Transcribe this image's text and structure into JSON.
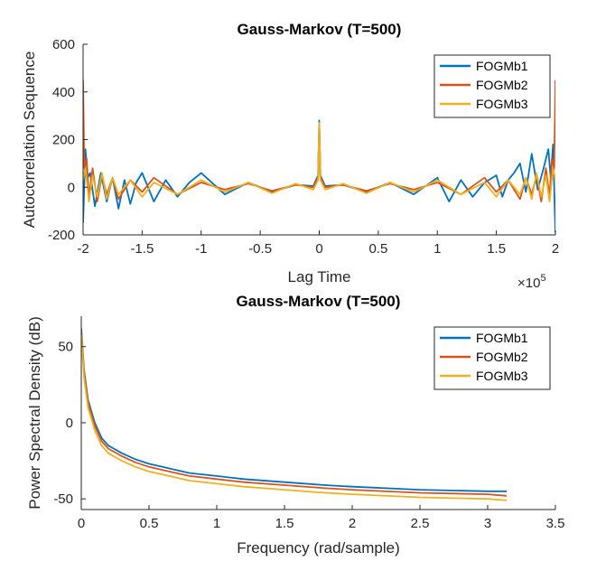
{
  "chart_data": [
    {
      "type": "line",
      "title": "Gauss-Markov (T=500)",
      "xlabel": "Lag Time",
      "ylabel": "Autocorrelation Sequence",
      "x_exponent_base": "×10",
      "x_exponent_power": "5",
      "xlim": [
        -200000,
        200000
      ],
      "ylim": [
        -200,
        600
      ],
      "xticks": [
        -200000,
        -150000,
        -100000,
        -50000,
        0,
        50000,
        100000,
        150000,
        200000
      ],
      "xtick_labels": [
        "-2",
        "-1.5",
        "-1",
        "-0.5",
        "0",
        "0.5",
        "1",
        "1.5",
        "2"
      ],
      "yticks": [
        -200,
        0,
        200,
        400,
        600
      ],
      "ytick_labels": [
        "-200",
        "0",
        "200",
        "400",
        "600"
      ],
      "legend_position": "top-right",
      "grid": false,
      "series": [
        {
          "name": "FOGMb1",
          "color": "#0072BD",
          "x": [
            -200000,
            -198000,
            -196000,
            -194000,
            -190000,
            -185000,
            -180000,
            -175000,
            -170000,
            -165000,
            -160000,
            -155000,
            -150000,
            -140000,
            -130000,
            -120000,
            -110000,
            -100000,
            -80000,
            -60000,
            -40000,
            -20000,
            -5000,
            -1000,
            0,
            1000,
            5000,
            20000,
            40000,
            60000,
            80000,
            100000,
            110000,
            120000,
            130000,
            140000,
            150000,
            155000,
            160000,
            165000,
            170000,
            175000,
            180000,
            185000,
            190000,
            194000,
            196000,
            198000,
            200000
          ],
          "values": [
            -150,
            160,
            40,
            60,
            -80,
            60,
            -60,
            40,
            -90,
            30,
            -70,
            20,
            60,
            -60,
            30,
            -40,
            20,
            60,
            -30,
            20,
            -20,
            10,
            5,
            50,
            280,
            50,
            5,
            10,
            -20,
            20,
            -30,
            40,
            -60,
            30,
            -40,
            20,
            50,
            -40,
            30,
            60,
            100,
            -20,
            140,
            -10,
            80,
            160,
            40,
            180,
            -190
          ]
        },
        {
          "name": "FOGMb2",
          "color": "#D95319",
          "x": [
            -200000,
            -199000,
            -197000,
            -195000,
            -192000,
            -188000,
            -184000,
            -180000,
            -175000,
            -170000,
            -160000,
            -150000,
            -140000,
            -120000,
            -100000,
            -80000,
            -60000,
            -40000,
            -20000,
            -5000,
            -1000,
            0,
            1000,
            5000,
            20000,
            40000,
            60000,
            80000,
            100000,
            120000,
            140000,
            150000,
            160000,
            170000,
            175000,
            180000,
            184000,
            188000,
            192000,
            195000,
            197000,
            199000,
            200000
          ],
          "values": [
            450,
            80,
            120,
            -40,
            80,
            -60,
            50,
            -30,
            40,
            -50,
            30,
            -20,
            40,
            -30,
            20,
            -10,
            15,
            -15,
            10,
            0,
            40,
            270,
            40,
            0,
            10,
            -15,
            15,
            -10,
            20,
            -30,
            40,
            -20,
            30,
            -50,
            40,
            -30,
            50,
            -60,
            80,
            -40,
            120,
            80,
            450
          ]
        },
        {
          "name": "FOGMb3",
          "color": "#EDB120",
          "x": [
            -200000,
            -198000,
            -195000,
            -192000,
            -188000,
            -184000,
            -180000,
            -175000,
            -170000,
            -160000,
            -150000,
            -140000,
            -120000,
            -100000,
            -80000,
            -60000,
            -40000,
            -20000,
            -5000,
            -1000,
            0,
            1000,
            5000,
            20000,
            40000,
            60000,
            80000,
            100000,
            120000,
            140000,
            150000,
            160000,
            170000,
            175000,
            180000,
            184000,
            188000,
            192000,
            195000,
            198000,
            200000
          ],
          "values": [
            30,
            80,
            -60,
            50,
            -40,
            60,
            -50,
            40,
            -30,
            30,
            -40,
            20,
            -30,
            30,
            -20,
            20,
            -25,
            15,
            -10,
            30,
            270,
            30,
            -10,
            15,
            -25,
            20,
            -20,
            30,
            -30,
            20,
            -40,
            30,
            -30,
            40,
            -50,
            60,
            -40,
            50,
            -60,
            80,
            30
          ]
        }
      ]
    },
    {
      "type": "line",
      "title": "Gauss-Markov (T=500)",
      "xlabel": "Frequency (rad/sample)",
      "ylabel": "Power Spectral Density (dB)",
      "xlim": [
        0,
        3.5
      ],
      "ylim": [
        -57,
        70
      ],
      "xticks": [
        0,
        0.5,
        1,
        1.5,
        2,
        2.5,
        3,
        3.5
      ],
      "xtick_labels": [
        "0",
        "0.5",
        "1",
        "1.5",
        "2",
        "2.5",
        "3",
        "3.5"
      ],
      "yticks": [
        -50,
        0,
        50
      ],
      "ytick_labels": [
        "-50",
        "0",
        "50"
      ],
      "legend_position": "top-right",
      "grid": false,
      "series": [
        {
          "name": "FOGMb1",
          "color": "#0072BD",
          "x": [
            0,
            0.02,
            0.05,
            0.1,
            0.15,
            0.2,
            0.3,
            0.4,
            0.5,
            0.6,
            0.7,
            0.8,
            1.0,
            1.2,
            1.5,
            1.8,
            2.0,
            2.5,
            3.0,
            3.14
          ],
          "values": [
            62,
            35,
            15,
            0,
            -10,
            -15,
            -20,
            -24,
            -27,
            -29,
            -31,
            -33,
            -35,
            -37,
            -39,
            -41,
            -42,
            -44,
            -45,
            -45
          ]
        },
        {
          "name": "FOGMb2",
          "color": "#D95319",
          "x": [
            0,
            0.02,
            0.05,
            0.1,
            0.15,
            0.2,
            0.3,
            0.4,
            0.5,
            0.6,
            0.7,
            0.8,
            1.0,
            1.2,
            1.5,
            1.8,
            2.0,
            2.5,
            3.0,
            3.14
          ],
          "values": [
            60,
            33,
            13,
            -2,
            -12,
            -17,
            -22,
            -26,
            -29,
            -31,
            -33,
            -35,
            -37,
            -39,
            -41,
            -43,
            -44,
            -46,
            -47,
            -48
          ]
        },
        {
          "name": "FOGMb3",
          "color": "#EDB120",
          "x": [
            0,
            0.02,
            0.05,
            0.1,
            0.15,
            0.2,
            0.3,
            0.4,
            0.5,
            0.6,
            0.7,
            0.8,
            1.0,
            1.2,
            1.5,
            1.8,
            2.0,
            2.5,
            3.0,
            3.14
          ],
          "values": [
            58,
            30,
            10,
            -5,
            -15,
            -20,
            -25,
            -29,
            -32,
            -34,
            -36,
            -38,
            -40,
            -42,
            -44,
            -46,
            -47,
            -49,
            -50,
            -51
          ]
        }
      ]
    }
  ]
}
